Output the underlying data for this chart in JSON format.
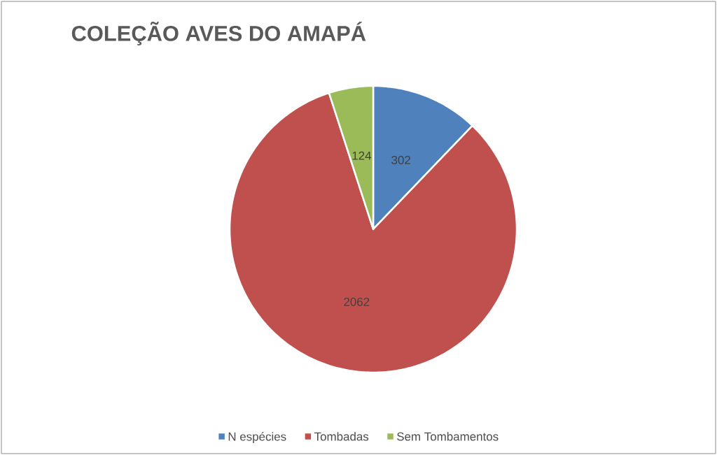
{
  "chart_data": {
    "type": "pie",
    "title": "COLEÇÃO AVES DO AMAPÁ",
    "categories": [
      "N espécies",
      "Tombadas",
      "Sem Tombamentos"
    ],
    "values": [
      302,
      2062,
      124
    ],
    "colors": [
      "#4f81bd",
      "#c0504d",
      "#9bbb59"
    ],
    "data_labels": true,
    "legend": "bottom"
  }
}
